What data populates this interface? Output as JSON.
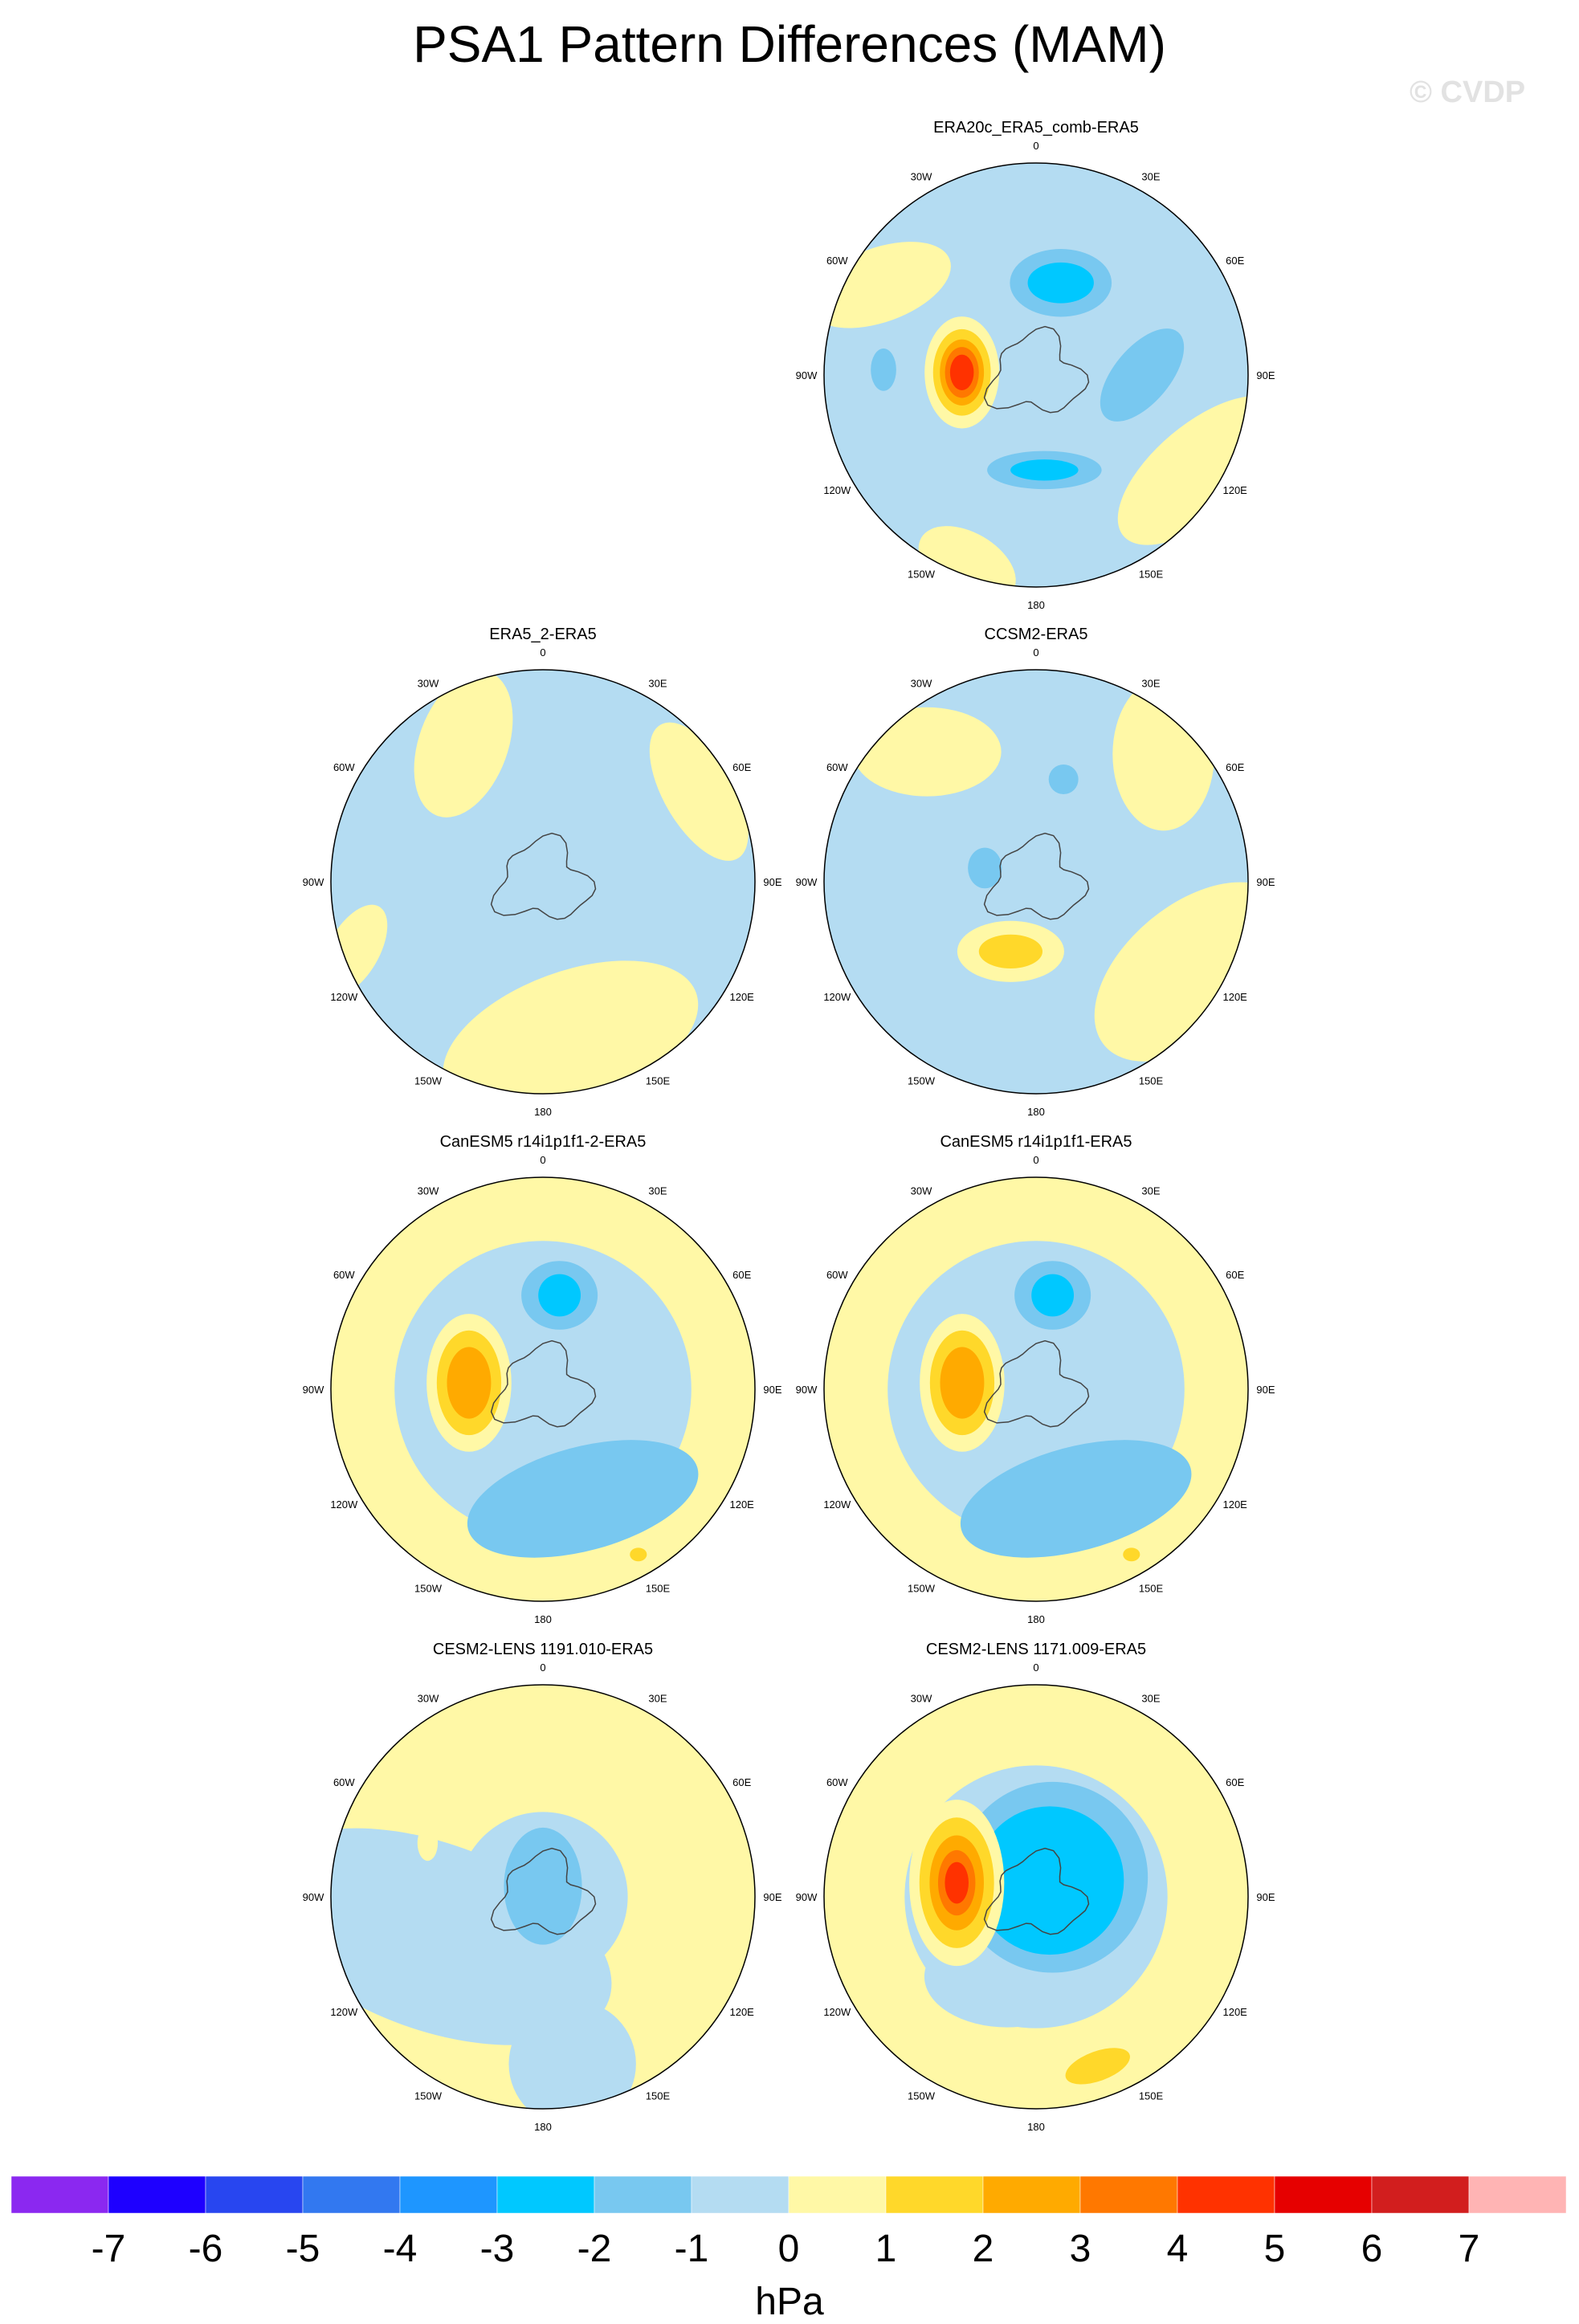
{
  "title": "PSA1 Pattern Differences (MAM)",
  "watermark": "© CVDP",
  "longitude_labels": [
    "0",
    "30E",
    "60E",
    "90E",
    "120E",
    "150E",
    "180",
    "150W",
    "120W",
    "90W",
    "60W",
    "30W"
  ],
  "panels": [
    {
      "id": "era20c",
      "title": "ERA20c_ERA5_comb-ERA5",
      "background": "#b4dcf2",
      "blobs": [
        {
          "lon": 300,
          "r": 0.85,
          "radius": 0.35,
          "value": 1,
          "rx": 1.0,
          "ry": 0.5,
          "rot": -20
        },
        {
          "lon": 120,
          "r": 0.9,
          "radius": 0.4,
          "value": 1,
          "rx": 1.2,
          "ry": 0.55,
          "rot": -40
        },
        {
          "lon": 200,
          "r": 0.95,
          "radius": 0.25,
          "value": 1,
          "rx": 1.0,
          "ry": 0.6,
          "rot": 30
        },
        {
          "lon": 15,
          "r": 0.45,
          "radius": 0.2,
          "value": -2,
          "rx": 1.2,
          "ry": 0.8,
          "rot": 0
        },
        {
          "lon": 15,
          "r": 0.45,
          "radius": 0.12,
          "value": -3,
          "rx": 1.3,
          "ry": 0.8,
          "rot": 0
        },
        {
          "lon": 90,
          "r": 0.5,
          "radius": 0.22,
          "value": -2,
          "rx": 1.2,
          "ry": 0.6,
          "rot": -50
        },
        {
          "lon": 175,
          "r": 0.45,
          "radius": 0.18,
          "value": -2,
          "rx": 1.5,
          "ry": 0.5,
          "rot": 0
        },
        {
          "lon": 175,
          "r": 0.45,
          "radius": 0.1,
          "value": -3,
          "rx": 1.6,
          "ry": 0.5,
          "rot": 0
        },
        {
          "lon": 272,
          "r": 0.72,
          "radius": 0.1,
          "value": -2,
          "rx": 0.6,
          "ry": 1.0,
          "rot": 0
        },
        {
          "lon": 272,
          "r": 0.35,
          "radius": 0.22,
          "value": 1,
          "rx": 0.8,
          "ry": 1.2,
          "rot": 0
        },
        {
          "lon": 272,
          "r": 0.35,
          "radius": 0.17,
          "value": 2,
          "rx": 0.8,
          "ry": 1.2,
          "rot": 0
        },
        {
          "lon": 272,
          "r": 0.35,
          "radius": 0.13,
          "value": 3,
          "rx": 0.8,
          "ry": 1.2,
          "rot": 0
        },
        {
          "lon": 272,
          "r": 0.35,
          "radius": 0.1,
          "value": 4,
          "rx": 0.8,
          "ry": 1.2,
          "rot": 0
        },
        {
          "lon": 272,
          "r": 0.35,
          "radius": 0.07,
          "value": 5,
          "rx": 0.8,
          "ry": 1.2,
          "rot": 0
        }
      ]
    },
    {
      "id": "era5-2",
      "title": "ERA5_2-ERA5",
      "background": "#b4dcf2",
      "blobs": [
        {
          "lon": 330,
          "r": 0.75,
          "radius": 0.3,
          "value": 1,
          "rx": 0.7,
          "ry": 1.2,
          "rot": 20
        },
        {
          "lon": 60,
          "r": 0.85,
          "radius": 0.28,
          "value": 1,
          "rx": 0.6,
          "ry": 1.3,
          "rot": -30
        },
        {
          "lon": 170,
          "r": 0.75,
          "radius": 0.45,
          "value": 1,
          "rx": 1.4,
          "ry": 0.7,
          "rot": -20
        },
        {
          "lon": 250,
          "r": 0.95,
          "radius": 0.2,
          "value": 1,
          "rx": 0.6,
          "ry": 1.2,
          "rot": 30
        }
      ]
    },
    {
      "id": "ccsm2",
      "title": "CCSM2-ERA5",
      "background": "#b4dcf2",
      "blobs": [
        {
          "lon": 320,
          "r": 0.8,
          "radius": 0.35,
          "value": 1,
          "rx": 1.0,
          "ry": 0.6,
          "rot": 0
        },
        {
          "lon": 45,
          "r": 0.85,
          "radius": 0.3,
          "value": 1,
          "rx": 0.8,
          "ry": 1.2,
          "rot": 0
        },
        {
          "lon": 120,
          "r": 0.85,
          "radius": 0.45,
          "value": 1,
          "rx": 1.2,
          "ry": 0.7,
          "rot": -40
        },
        {
          "lon": 200,
          "r": 0.35,
          "radius": 0.18,
          "value": 1,
          "rx": 1.4,
          "ry": 0.8,
          "rot": 0
        },
        {
          "lon": 200,
          "r": 0.35,
          "radius": 0.1,
          "value": 2,
          "rx": 1.5,
          "ry": 0.8,
          "rot": 0
        },
        {
          "lon": 15,
          "r": 0.5,
          "radius": 0.07,
          "value": -2,
          "rx": 1.0,
          "ry": 1.0,
          "rot": 0
        },
        {
          "lon": 285,
          "r": 0.25,
          "radius": 0.08,
          "value": -2,
          "rx": 1.0,
          "ry": 1.2,
          "rot": 0
        }
      ]
    },
    {
      "id": "canesm5-2",
      "title": "CanESM5 r14i1p1f1-2-ERA5",
      "background": "#fff8a6",
      "blobs": [
        {
          "lon": 0,
          "r": 0.0,
          "radius": 0.7,
          "value": -1,
          "rx": 1.0,
          "ry": 1.0,
          "rot": 0
        },
        {
          "lon": 160,
          "r": 0.55,
          "radius": 0.35,
          "value": -2,
          "rx": 1.6,
          "ry": 0.7,
          "rot": -15
        },
        {
          "lon": 10,
          "r": 0.45,
          "radius": 0.18,
          "value": -2,
          "rx": 1.0,
          "ry": 0.9,
          "rot": 0
        },
        {
          "lon": 10,
          "r": 0.45,
          "radius": 0.1,
          "value": -3,
          "rx": 1.0,
          "ry": 1.0,
          "rot": 0
        },
        {
          "lon": 275,
          "r": 0.35,
          "radius": 0.25,
          "value": 1,
          "rx": 0.8,
          "ry": 1.3,
          "rot": 0
        },
        {
          "lon": 275,
          "r": 0.35,
          "radius": 0.19,
          "value": 2,
          "rx": 0.8,
          "ry": 1.3,
          "rot": 0
        },
        {
          "lon": 275,
          "r": 0.35,
          "radius": 0.13,
          "value": 3,
          "rx": 0.8,
          "ry": 1.3,
          "rot": 0
        },
        {
          "lon": 150,
          "r": 0.9,
          "radius": 0.04,
          "value": 2,
          "rx": 1.0,
          "ry": 0.8,
          "rot": 0
        }
      ]
    },
    {
      "id": "canesm5",
      "title": "CanESM5 r14i1p1f1-ERA5",
      "background": "#fff8a6",
      "blobs": [
        {
          "lon": 0,
          "r": 0.0,
          "radius": 0.7,
          "value": -1,
          "rx": 1.0,
          "ry": 1.0,
          "rot": 0
        },
        {
          "lon": 160,
          "r": 0.55,
          "radius": 0.35,
          "value": -2,
          "rx": 1.6,
          "ry": 0.7,
          "rot": -15
        },
        {
          "lon": 10,
          "r": 0.45,
          "radius": 0.18,
          "value": -2,
          "rx": 1.0,
          "ry": 0.9,
          "rot": 0
        },
        {
          "lon": 10,
          "r": 0.45,
          "radius": 0.1,
          "value": -3,
          "rx": 1.0,
          "ry": 1.0,
          "rot": 0
        },
        {
          "lon": 275,
          "r": 0.35,
          "radius": 0.25,
          "value": 1,
          "rx": 0.8,
          "ry": 1.3,
          "rot": 0
        },
        {
          "lon": 275,
          "r": 0.35,
          "radius": 0.19,
          "value": 2,
          "rx": 0.8,
          "ry": 1.3,
          "rot": 0
        },
        {
          "lon": 275,
          "r": 0.35,
          "radius": 0.13,
          "value": 3,
          "rx": 0.8,
          "ry": 1.3,
          "rot": 0
        },
        {
          "lon": 150,
          "r": 0.9,
          "radius": 0.04,
          "value": 2,
          "rx": 1.0,
          "ry": 0.8,
          "rot": 0
        }
      ]
    },
    {
      "id": "cesm2-1191",
      "title": "CESM2-LENS 1191.010-ERA5",
      "background": "#fff8a6",
      "blobs": [
        {
          "lon": 250,
          "r": 0.55,
          "radius": 0.55,
          "value": -1,
          "rx": 1.6,
          "ry": 0.8,
          "rot": 20
        },
        {
          "lon": 0,
          "r": 0.0,
          "radius": 0.4,
          "value": -1,
          "rx": 1.0,
          "ry": 1.0,
          "rot": 0
        },
        {
          "lon": 170,
          "r": 0.8,
          "radius": 0.3,
          "value": -1,
          "rx": 1.0,
          "ry": 1.0,
          "rot": 0
        },
        {
          "lon": 0,
          "r": 0.05,
          "radius": 0.23,
          "value": -2,
          "rx": 0.8,
          "ry": 1.2,
          "rot": 0
        },
        {
          "lon": 295,
          "r": 0.6,
          "radius": 0.06,
          "value": 1,
          "rx": 0.8,
          "ry": 1.4,
          "rot": 0
        }
      ]
    },
    {
      "id": "cesm2-1171",
      "title": "CESM2-LENS 1171.009-ERA5",
      "background": "#fff8a6",
      "blobs": [
        {
          "lon": 0,
          "r": 0.0,
          "radius": 0.62,
          "value": -1,
          "rx": 1.0,
          "ry": 1.0,
          "rot": 0
        },
        {
          "lon": 200,
          "r": 0.4,
          "radius": 0.3,
          "value": -1,
          "rx": 1.3,
          "ry": 0.8,
          "rot": 0
        },
        {
          "lon": 40,
          "r": 0.12,
          "radius": 0.45,
          "value": -2,
          "rx": 1.0,
          "ry": 1.0,
          "rot": 0
        },
        {
          "lon": 40,
          "r": 0.1,
          "radius": 0.35,
          "value": -3,
          "rx": 1.0,
          "ry": 1.0,
          "rot": 0
        },
        {
          "lon": 280,
          "r": 0.38,
          "radius": 0.28,
          "value": 1,
          "rx": 0.8,
          "ry": 1.4,
          "rot": 0
        },
        {
          "lon": 280,
          "r": 0.38,
          "radius": 0.22,
          "value": 2,
          "rx": 0.8,
          "ry": 1.4,
          "rot": 0
        },
        {
          "lon": 280,
          "r": 0.38,
          "radius": 0.16,
          "value": 3,
          "rx": 0.8,
          "ry": 1.4,
          "rot": 0
        },
        {
          "lon": 280,
          "r": 0.38,
          "radius": 0.11,
          "value": 4,
          "rx": 0.8,
          "ry": 1.4,
          "rot": 0
        },
        {
          "lon": 280,
          "r": 0.38,
          "radius": 0.07,
          "value": 5,
          "rx": 0.8,
          "ry": 1.4,
          "rot": 0
        },
        {
          "lon": 160,
          "r": 0.85,
          "radius": 0.15,
          "value": 1,
          "rx": 1.6,
          "ry": 0.7,
          "rot": -20
        },
        {
          "lon": 160,
          "r": 0.85,
          "radius": 0.1,
          "value": 2,
          "rx": 1.6,
          "ry": 0.7,
          "rot": -20
        }
      ]
    }
  ],
  "colorbar": {
    "units": "hPa",
    "labels": [
      "-7",
      "-6",
      "-5",
      "-4",
      "-3",
      "-2",
      "-1",
      "0",
      "1",
      "2",
      "3",
      "4",
      "5",
      "6",
      "7"
    ],
    "colors": [
      "#8b28f0",
      "#1e00ff",
      "#2846f0",
      "#3278f0",
      "#1e96ff",
      "#00c8ff",
      "#78c8f0",
      "#b4dcf2",
      "#fff8a6",
      "#ffd82a",
      "#ffaa00",
      "#ff7800",
      "#ff3200",
      "#e60000",
      "#d21e1e",
      "#ffb4b4"
    ]
  }
}
